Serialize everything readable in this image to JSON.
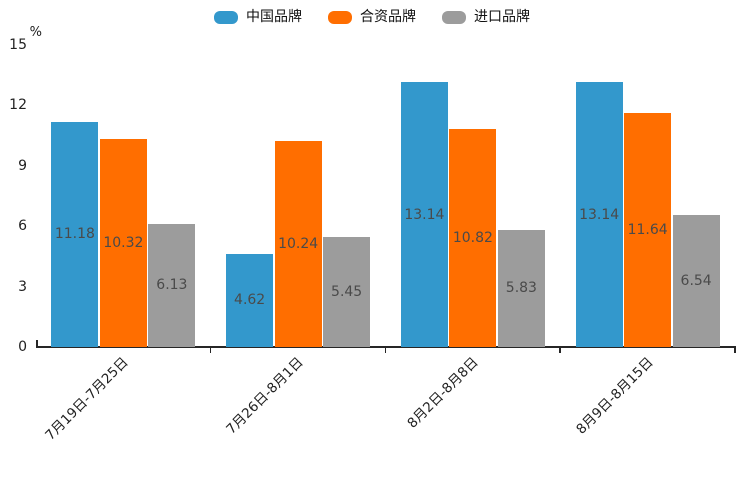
{
  "legend": {
    "items": [
      {
        "label": "中国品牌",
        "color": "#3398CC"
      },
      {
        "label": "合资品牌",
        "color": "#FF6E00"
      },
      {
        "label": "进口品牌",
        "color": "#9C9C9C"
      }
    ]
  },
  "chart_data": {
    "type": "bar",
    "title": "",
    "ylabel": "%",
    "xlabel": "",
    "categories": [
      "7月19日-7月25日",
      "7月26日-8月1日",
      "8月2日-8月8日",
      "8月9日-8月15日"
    ],
    "series": [
      {
        "name": "中国品牌",
        "color": "#3398CC",
        "values": [
          11.18,
          4.62,
          13.14,
          13.14
        ]
      },
      {
        "name": "合资品牌",
        "color": "#FF6E00",
        "values": [
          10.32,
          10.24,
          10.82,
          11.64
        ]
      },
      {
        "name": "进口品牌",
        "color": "#9C9C9C",
        "values": [
          6.13,
          5.45,
          5.83,
          6.54
        ]
      }
    ],
    "yticks": [
      0,
      3,
      6,
      9,
      12,
      15
    ],
    "ylim": [
      0,
      15
    ],
    "grid": false,
    "legend_position": "top-center",
    "value_labels": "inside-center",
    "value_label_format": "2-decimals",
    "xtick_rotation_deg": 45,
    "axis_color": "#262626"
  }
}
